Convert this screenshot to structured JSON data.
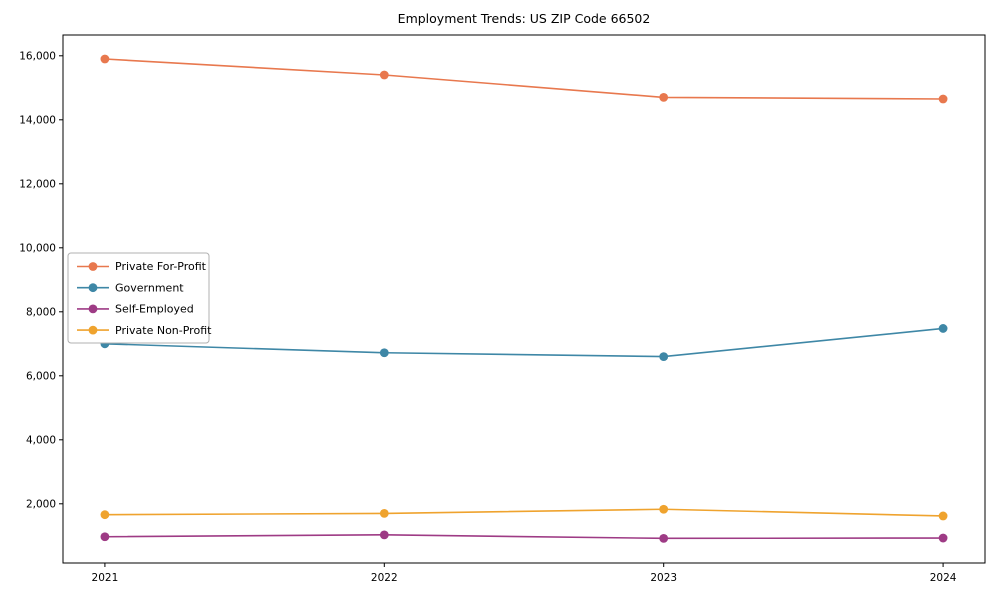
{
  "chart_data": {
    "type": "line",
    "title": "Employment Trends: US ZIP Code 66502",
    "xlabel": "",
    "ylabel": "",
    "x": [
      2021,
      2022,
      2023,
      2024
    ],
    "x_tick_labels": [
      "2021",
      "2022",
      "2023",
      "2024"
    ],
    "series": [
      {
        "name": "Private For-Profit",
        "color": "#e8784e",
        "values": [
          15900,
          15400,
          14700,
          14650
        ]
      },
      {
        "name": "Government",
        "color": "#3e87a6",
        "values": [
          7000,
          6720,
          6600,
          7480
        ]
      },
      {
        "name": "Self-Employed",
        "color": "#9e3b85",
        "values": [
          970,
          1030,
          920,
          930
        ]
      },
      {
        "name": "Private Non-Profit",
        "color": "#efa32e",
        "values": [
          1660,
          1700,
          1830,
          1620
        ]
      }
    ],
    "xlim": [
      2020.85,
      2024.15
    ],
    "ylim": [
      150,
      16650
    ],
    "yticks": [
      2000,
      4000,
      6000,
      8000,
      10000,
      12000,
      14000,
      16000
    ],
    "ytick_labels": [
      "2,000",
      "4,000",
      "6,000",
      "8,000",
      "10,000",
      "12,000",
      "14,000",
      "16,000"
    ],
    "grid": false,
    "legend_position": "center left",
    "marker": "circle",
    "axis_color": "#000000",
    "background": "#ffffff"
  }
}
